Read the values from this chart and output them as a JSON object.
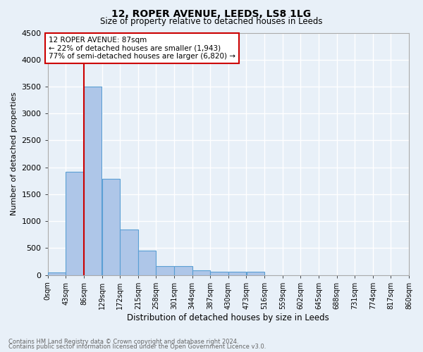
{
  "title1": "12, ROPER AVENUE, LEEDS, LS8 1LG",
  "title2": "Size of property relative to detached houses in Leeds",
  "xlabel": "Distribution of detached houses by size in Leeds",
  "ylabel": "Number of detached properties",
  "bar_values": [
    50,
    1920,
    3500,
    1780,
    840,
    450,
    170,
    160,
    80,
    60,
    55,
    55,
    0,
    0,
    0,
    0,
    0,
    0,
    0,
    0
  ],
  "bin_labels": [
    "0sqm",
    "43sqm",
    "86sqm",
    "129sqm",
    "172sqm",
    "215sqm",
    "258sqm",
    "301sqm",
    "344sqm",
    "387sqm",
    "430sqm",
    "473sqm",
    "516sqm",
    "559sqm",
    "602sqm",
    "645sqm",
    "688sqm",
    "731sqm",
    "774sqm",
    "817sqm",
    "860sqm"
  ],
  "bar_color": "#aec6e8",
  "bar_edge_color": "#5a9fd4",
  "background_color": "#e8f0f8",
  "grid_color": "#ffffff",
  "marker_color": "#cc0000",
  "annotation_text": "12 ROPER AVENUE: 87sqm\n← 22% of detached houses are smaller (1,943)\n77% of semi-detached houses are larger (6,820) →",
  "annotation_box_color": "#ffffff",
  "annotation_box_edge": "#cc0000",
  "ylim": [
    0,
    4500
  ],
  "yticks": [
    0,
    500,
    1000,
    1500,
    2000,
    2500,
    3000,
    3500,
    4000,
    4500
  ],
  "footer1": "Contains HM Land Registry data © Crown copyright and database right 2024.",
  "footer2": "Contains public sector information licensed under the Open Government Licence v3.0."
}
